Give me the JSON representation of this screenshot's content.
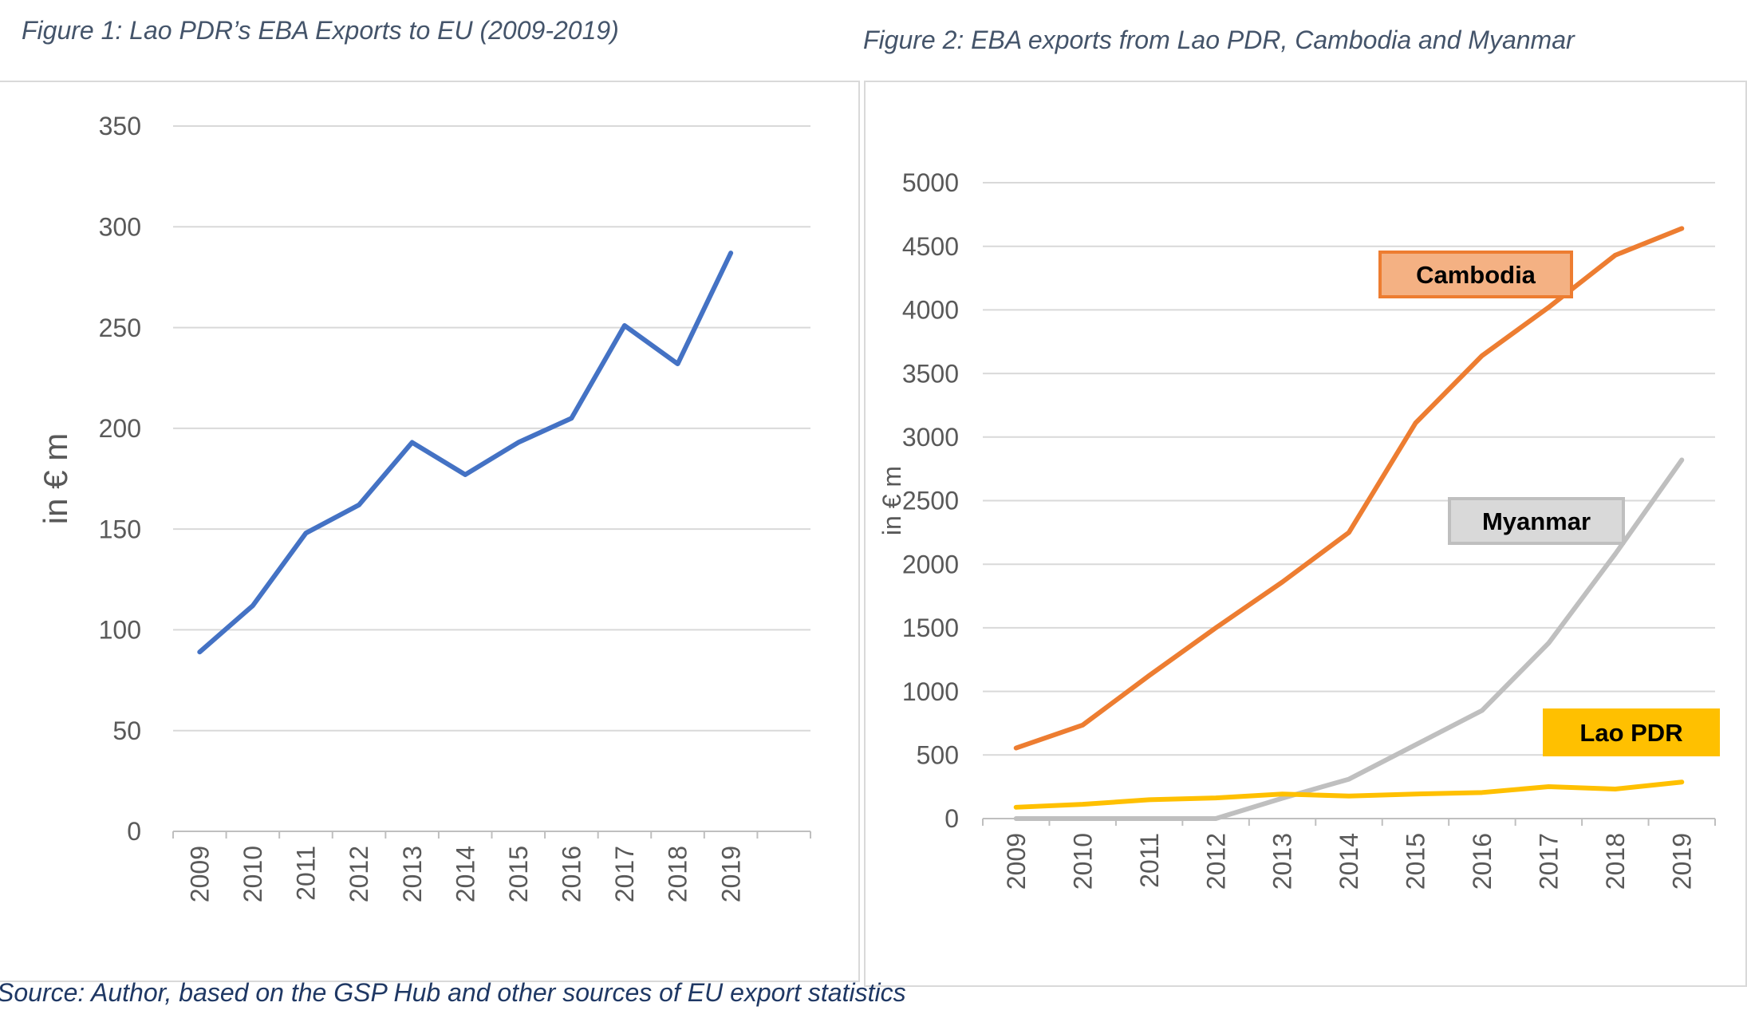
{
  "figure1_caption": "Figure 1: Lao PDR’s EBA Exports to EU (2009-2019)",
  "figure2_caption": "Figure 2: EBA exports from Lao PDR, Cambodia and Myanmar",
  "source_note": "Source: Author, based on the GSP Hub and other sources of EU export statistics",
  "chart_data": [
    {
      "type": "line",
      "title": "",
      "xlabel": "",
      "ylabel": "in € m",
      "ylim": [
        0,
        350
      ],
      "yticks": [
        0,
        50,
        100,
        150,
        200,
        250,
        300,
        350
      ],
      "grid": true,
      "legend": "none",
      "categories": [
        "2009",
        "2010",
        "2011",
        "2012",
        "2013",
        "2014",
        "2015",
        "2016",
        "2017",
        "2018",
        "2019"
      ],
      "series": [
        {
          "values": [
            89,
            112,
            148,
            162,
            193,
            177,
            193,
            205,
            251,
            232,
            287
          ],
          "color": "#4472c4"
        }
      ]
    },
    {
      "type": "line",
      "title": "",
      "xlabel": "",
      "ylabel": "in € m",
      "ylim": [
        0,
        5000
      ],
      "yticks": [
        0,
        500,
        1000,
        1500,
        2000,
        2500,
        3000,
        3500,
        4000,
        4500,
        5000
      ],
      "grid": true,
      "legend": "inline-labels",
      "categories": [
        "2009",
        "2010",
        "2011",
        "2012",
        "2013",
        "2014",
        "2015",
        "2016",
        "2017",
        "2018",
        "2019"
      ],
      "series": [
        {
          "name": "Cambodia",
          "values": [
            555,
            735,
            1125,
            1500,
            1860,
            2250,
            3110,
            3640,
            4020,
            4430,
            4640
          ],
          "color": "#ed7d31",
          "label_fill": "#f4b183"
        },
        {
          "name": "Myanmar",
          "values": [
            0,
            0,
            0,
            0,
            160,
            310,
            580,
            850,
            1380,
            2080,
            2820
          ],
          "color": "#bfbfbf",
          "label_fill": "#d9d9d9"
        },
        {
          "name": "Lao PDR",
          "values": [
            89,
            112,
            148,
            162,
            193,
            177,
            193,
            205,
            251,
            232,
            287
          ],
          "color": "#ffc000",
          "label_fill": "#ffc000"
        }
      ]
    }
  ]
}
